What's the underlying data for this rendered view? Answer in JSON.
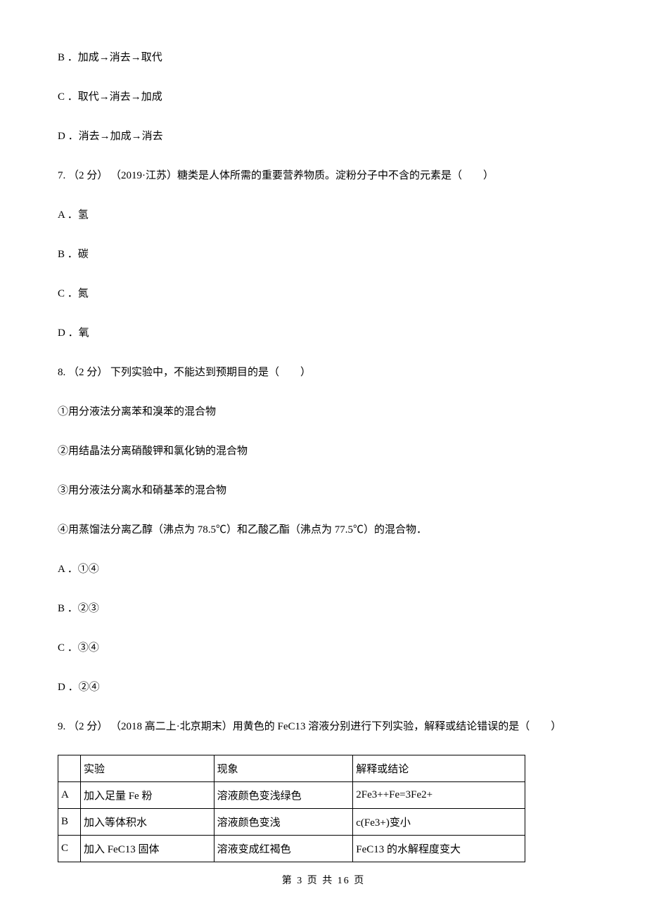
{
  "q6": {
    "optionB": "B ．加成→消去→取代",
    "optionC": "C ．取代→消去→加成",
    "optionD": "D ．消去→加成→消去"
  },
  "q7": {
    "stem": "7. （2 分） （2019·江苏）糖类是人体所需的重要营养物质。淀粉分子中不含的元素是（　　）",
    "optionA": "A ．氢",
    "optionB": "B ．碳",
    "optionC": "C ．氮",
    "optionD": "D ．氧"
  },
  "q8": {
    "stem": "8. （2 分） 下列实验中，不能达到预期目的是（　　）",
    "item1": "①用分液法分离苯和溴苯的混合物",
    "item2": "②用结晶法分离硝酸钾和氯化钠的混合物",
    "item3": "③用分液法分离水和硝基苯的混合物",
    "item4": "④用蒸馏法分离乙醇（沸点为 78.5℃）和乙酸乙酯（沸点为 77.5℃）的混合物．",
    "optionA": "A ．①④",
    "optionB": "B ．②③",
    "optionC": "C ．③④",
    "optionD": "D ．②④"
  },
  "q9": {
    "stem": "9. （2 分） （2018 高二上·北京期末）用黄色的 FeC13 溶液分别进行下列实验，解释或结论错误的是（　　）",
    "table": {
      "headers": [
        "",
        "实验",
        "现象",
        "解释或结论"
      ],
      "rows": [
        [
          "A",
          "加入足量 Fe 粉",
          "溶液颜色变浅绿色",
          "2Fe3++Fe=3Fe2+"
        ],
        [
          "B",
          "加入等体积水",
          "溶液颜色变浅",
          "c(Fe3+)变小"
        ],
        [
          "C",
          "加入 FeC13 固体",
          "溶液变成红褐色",
          "FeC13 的水解程度变大"
        ]
      ]
    }
  },
  "footer": "第 3 页 共 16 页"
}
